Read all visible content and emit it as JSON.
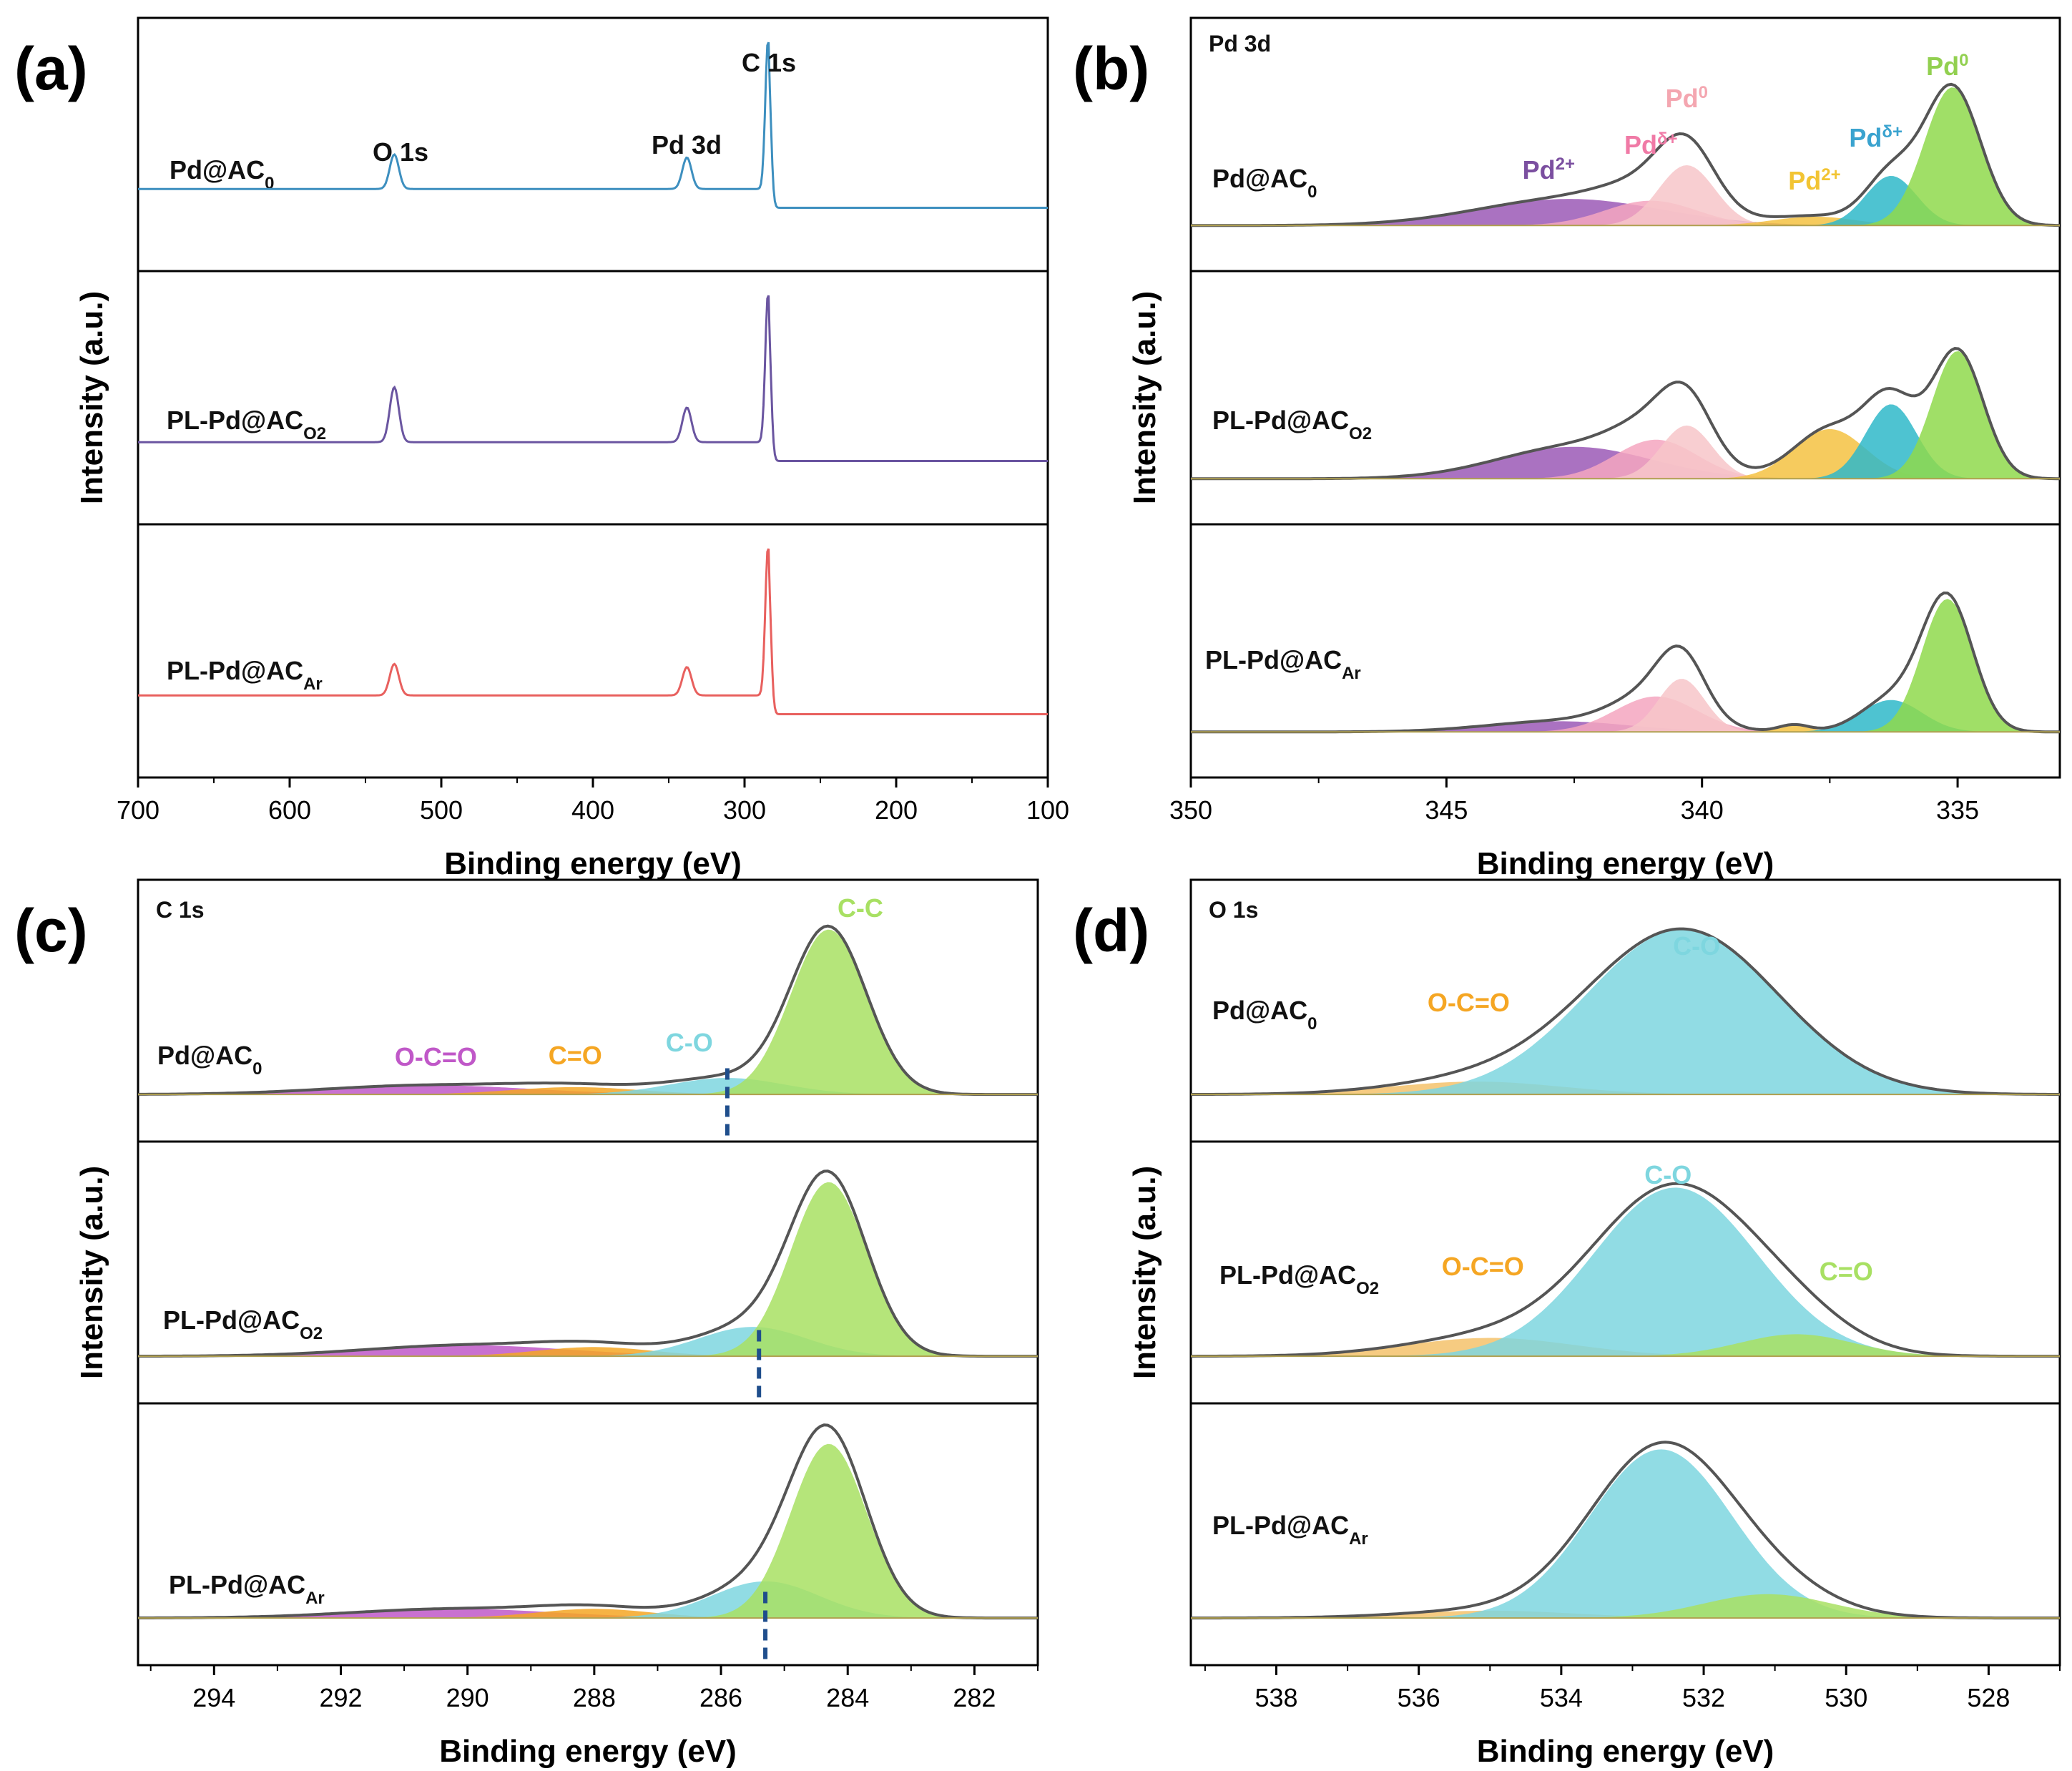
{
  "chart_data": [
    {
      "id": "a",
      "panel_letter": "(a)",
      "type": "line",
      "title": "",
      "xlabel": "Binding energy (eV)",
      "ylabel": "Intensity (a.u.)",
      "xlim": [
        700,
        100
      ],
      "x_reversed": true,
      "xticks": [
        700,
        600,
        500,
        400,
        300,
        200,
        100
      ],
      "samples": [
        {
          "name": "Pd@AC",
          "sub": "0",
          "color": "#3d8fbf",
          "baseline": 0.12,
          "peaks": [
            {
              "center": 531,
              "height": 0.22,
              "width": 3
            },
            {
              "center": 338,
              "height": 0.2,
              "width": 3
            },
            {
              "center": 284.5,
              "height": 0.95,
              "width": 1.8
            }
          ]
        },
        {
          "name": "PL-Pd@AC",
          "sub": "O2",
          "color": "#6a55a0",
          "baseline": 0.12,
          "peaks": [
            {
              "center": 531,
              "height": 0.35,
              "width": 3
            },
            {
              "center": 338,
              "height": 0.22,
              "width": 3
            },
            {
              "center": 284.5,
              "height": 0.95,
              "width": 1.8
            }
          ]
        },
        {
          "name": "PL-Pd@AC",
          "sub": "Ar",
          "color": "#e8605e",
          "baseline": 0.12,
          "peaks": [
            {
              "center": 531,
              "height": 0.2,
              "width": 3
            },
            {
              "center": 338,
              "height": 0.18,
              "width": 3
            },
            {
              "center": 284.5,
              "height": 0.95,
              "width": 1.8
            }
          ]
        }
      ],
      "annotations": [
        "O 1s",
        "Pd 3d",
        "C 1s"
      ]
    },
    {
      "id": "b",
      "panel_letter": "(b)",
      "type": "area",
      "title": "Pd 3d",
      "xlabel": "Binding energy (eV)",
      "ylabel": "Intensity (a.u.)",
      "xlim": [
        350,
        333
      ],
      "x_reversed": true,
      "xticks": [
        350,
        345,
        340,
        335
      ],
      "samples": [
        {
          "name": "Pd@AC",
          "sub": "0",
          "components": [
            {
              "label": "Pd2+",
              "center": 342.6,
              "height": 0.15,
              "width": 1.8,
              "color": "#9b59b6"
            },
            {
              "label": "Pdδ+",
              "center": 341.0,
              "height": 0.14,
              "width": 0.9,
              "color": "#f4a6c0"
            },
            {
              "label": "Pd0",
              "center": 340.3,
              "height": 0.34,
              "width": 0.55,
              "color": "#f7c6c9"
            },
            {
              "label": "Pd2+",
              "center": 337.8,
              "height": 0.05,
              "width": 0.8,
              "color": "#f5c242"
            },
            {
              "label": "Pdδ+",
              "center": 336.3,
              "height": 0.28,
              "width": 0.5,
              "color": "#2fb9c9"
            },
            {
              "label": "Pd0",
              "center": 335.1,
              "height": 0.78,
              "width": 0.55,
              "color": "#8fd94c"
            }
          ]
        },
        {
          "name": "PL-Pd@AC",
          "sub": "O2",
          "components": [
            {
              "label": "Pd2+",
              "center": 342.5,
              "height": 0.18,
              "width": 1.5,
              "color": "#9b59b6"
            },
            {
              "label": "Pdδ+",
              "center": 340.9,
              "height": 0.22,
              "width": 0.8,
              "color": "#f4a6c0"
            },
            {
              "label": "Pd0",
              "center": 340.3,
              "height": 0.3,
              "width": 0.5,
              "color": "#f7c6c9"
            },
            {
              "label": "Pd2+",
              "center": 337.5,
              "height": 0.28,
              "width": 0.7,
              "color": "#f5c242"
            },
            {
              "label": "Pdδ+",
              "center": 336.3,
              "height": 0.42,
              "width": 0.5,
              "color": "#2fb9c9"
            },
            {
              "label": "Pd0",
              "center": 335.0,
              "height": 0.72,
              "width": 0.5,
              "color": "#8fd94c"
            }
          ]
        },
        {
          "name": "PL-Pd@AC",
          "sub": "Ar",
          "components": [
            {
              "label": "Pd2+",
              "center": 342.8,
              "height": 0.06,
              "width": 1.4,
              "color": "#9b59b6"
            },
            {
              "label": "Pdδ+",
              "center": 340.9,
              "height": 0.2,
              "width": 0.8,
              "color": "#f4a6c0"
            },
            {
              "label": "Pd0",
              "center": 340.4,
              "height": 0.3,
              "width": 0.45,
              "color": "#f7c6c9"
            },
            {
              "label": "Pd2+",
              "center": 338.2,
              "height": 0.04,
              "width": 0.3,
              "color": "#f5c242"
            },
            {
              "label": "Pdδ+",
              "center": 336.3,
              "height": 0.18,
              "width": 0.6,
              "color": "#2fb9c9"
            },
            {
              "label": "Pd0",
              "center": 335.2,
              "height": 0.75,
              "width": 0.5,
              "color": "#8fd94c"
            }
          ]
        }
      ],
      "peak_labels": [
        {
          "label": "Pd",
          "sup": "2+",
          "x": 343.0,
          "color": "#7b4fa0"
        },
        {
          "label": "Pd",
          "sup": "δ+",
          "x": 341.0,
          "color": "#f07aa6"
        },
        {
          "label": "Pd",
          "sup": "0",
          "x": 340.3,
          "color": "#f4a6b0"
        },
        {
          "label": "Pd",
          "sup": "2+",
          "x": 337.8,
          "color": "#f2c433"
        },
        {
          "label": "Pd",
          "sup": "δ+",
          "x": 336.6,
          "color": "#3aa3cf"
        },
        {
          "label": "Pd",
          "sup": "0",
          "x": 335.2,
          "color": "#92d050"
        }
      ]
    },
    {
      "id": "c",
      "panel_letter": "(c)",
      "type": "area",
      "title": "C 1s",
      "xlabel": "Binding energy (eV)",
      "ylabel": "Intensity (a.u.)",
      "xlim": [
        295.2,
        281
      ],
      "x_reversed": true,
      "xticks": [
        294,
        292,
        290,
        288,
        286,
        284,
        282
      ],
      "samples": [
        {
          "name": "Pd@AC",
          "sub": "0",
          "marker_x": 285.9,
          "components": [
            {
              "label": "O-C=O",
              "center": 290.6,
              "height": 0.05,
              "width": 1.6,
              "color": "#c058c8"
            },
            {
              "label": "C=O",
              "center": 288.3,
              "height": 0.04,
              "width": 1.0,
              "color": "#f5a623"
            },
            {
              "label": "C-O",
              "center": 285.9,
              "height": 0.09,
              "width": 0.9,
              "color": "#7ed6df"
            },
            {
              "label": "C-C",
              "center": 284.3,
              "height": 0.9,
              "width": 0.6,
              "color": "#a8e063"
            }
          ]
        },
        {
          "name": "PL-Pd@AC",
          "sub": "O2",
          "marker_x": 285.4,
          "components": [
            {
              "label": "O-C=O",
              "center": 290.0,
              "height": 0.06,
              "width": 1.6,
              "color": "#c058c8"
            },
            {
              "label": "C=O",
              "center": 288.0,
              "height": 0.05,
              "width": 0.9,
              "color": "#f5a623"
            },
            {
              "label": "C-O",
              "center": 285.5,
              "height": 0.16,
              "width": 0.85,
              "color": "#7ed6df"
            },
            {
              "label": "C-C",
              "center": 284.3,
              "height": 0.95,
              "width": 0.6,
              "color": "#a8e063"
            }
          ]
        },
        {
          "name": "PL-Pd@AC",
          "sub": "Ar",
          "marker_x": 285.3,
          "components": [
            {
              "label": "O-C=O",
              "center": 290.2,
              "height": 0.05,
              "width": 1.6,
              "color": "#c058c8"
            },
            {
              "label": "C=O",
              "center": 288.0,
              "height": 0.05,
              "width": 0.9,
              "color": "#f5a623"
            },
            {
              "label": "C-O",
              "center": 285.3,
              "height": 0.2,
              "width": 0.85,
              "color": "#7ed6df"
            },
            {
              "label": "C-C",
              "center": 284.3,
              "height": 0.95,
              "width": 0.6,
              "color": "#a8e063"
            }
          ]
        }
      ],
      "peak_labels": [
        {
          "label": "O-C=O",
          "x": 290.5,
          "color": "#c058c8"
        },
        {
          "label": "C=O",
          "x": 288.3,
          "color": "#f5a623"
        },
        {
          "label": "C-O",
          "x": 286.5,
          "color": "#7ed6df"
        },
        {
          "label": "C-C",
          "x": 283.8,
          "color": "#a8e063"
        }
      ]
    },
    {
      "id": "d",
      "panel_letter": "(d)",
      "type": "area",
      "title": "O 1s",
      "xlabel": "Binding energy (eV)",
      "ylabel": "Intensity (a.u.)",
      "xlim": [
        539.2,
        527
      ],
      "x_reversed": true,
      "xticks": [
        538,
        536,
        534,
        532,
        530,
        528
      ],
      "samples": [
        {
          "name": "Pd@AC",
          "sub": "0",
          "components": [
            {
              "label": "O-C=O",
              "center": 535.2,
              "height": 0.07,
              "width": 1.2,
              "color": "#f5c26b"
            },
            {
              "label": "C-O",
              "center": 532.3,
              "height": 0.9,
              "width": 1.35,
              "color": "#7ed6df"
            }
          ]
        },
        {
          "name": "PL-Pd@AC",
          "sub": "O2",
          "components": [
            {
              "label": "O-C=O",
              "center": 535.0,
              "height": 0.1,
              "width": 1.2,
              "color": "#f5c26b"
            },
            {
              "label": "C-O",
              "center": 532.4,
              "height": 0.92,
              "width": 1.15,
              "color": "#7ed6df"
            },
            {
              "label": "C=O",
              "center": 530.7,
              "height": 0.12,
              "width": 0.8,
              "color": "#a8e063"
            }
          ]
        },
        {
          "name": "PL-Pd@AC",
          "sub": "Ar",
          "components": [
            {
              "label": "O-C=O",
              "center": 535.0,
              "height": 0.04,
              "width": 1.2,
              "color": "#f5c26b"
            },
            {
              "label": "C-O",
              "center": 532.6,
              "height": 0.92,
              "width": 1.0,
              "color": "#7ed6df"
            },
            {
              "label": "C=O",
              "center": 531.1,
              "height": 0.13,
              "width": 0.9,
              "color": "#a8e063"
            }
          ]
        }
      ],
      "peak_labels": [
        {
          "label": "O-C=O",
          "x": 535.3,
          "row": 0,
          "color": "#f5a623"
        },
        {
          "label": "C-O",
          "x": 532.1,
          "row": 0,
          "color": "#7ed6df"
        },
        {
          "label": "O-C=O",
          "x": 535.1,
          "row": 1,
          "color": "#f5a623"
        },
        {
          "label": "C-O",
          "x": 532.5,
          "row": 1,
          "color": "#7ed6df"
        },
        {
          "label": "C=O",
          "x": 530.0,
          "row": 1,
          "color": "#a8e063"
        }
      ]
    }
  ]
}
